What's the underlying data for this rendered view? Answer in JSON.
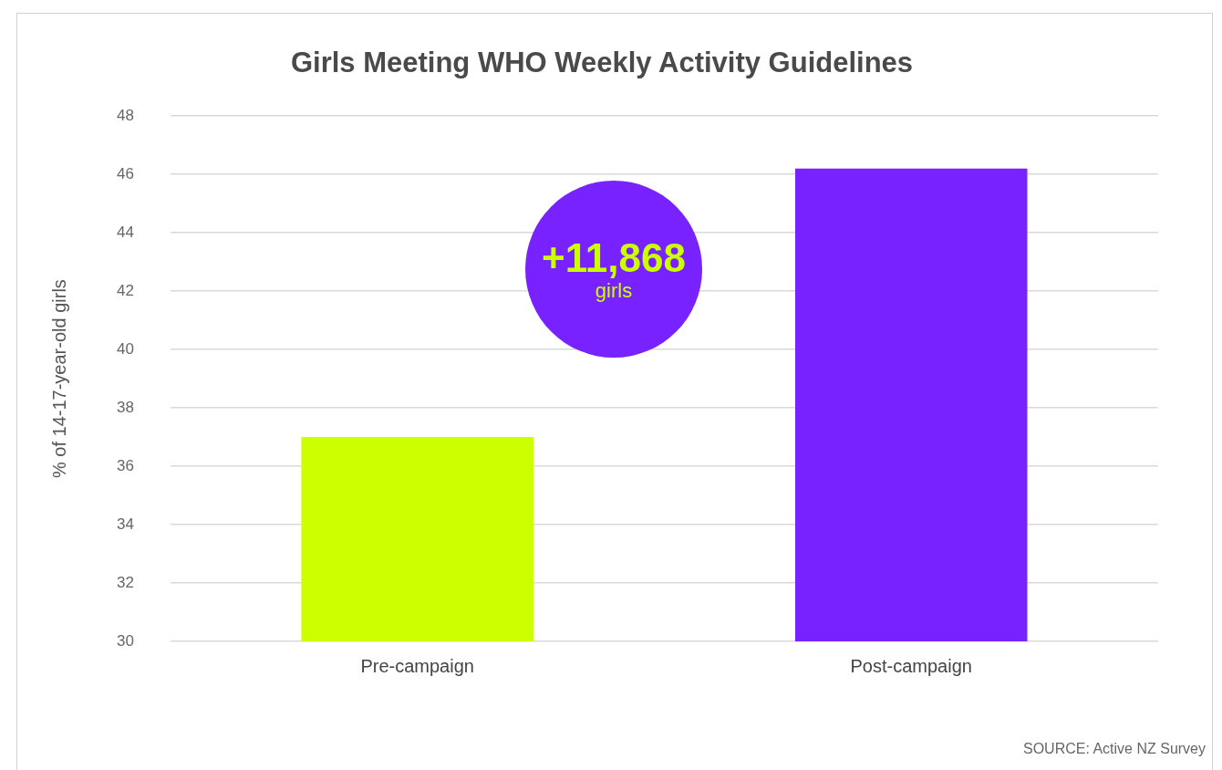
{
  "chart_data": {
    "type": "bar",
    "title": "Girls Meeting WHO Weekly Activity Guidelines",
    "ylabel": "% of 14-17-year-old girls",
    "categories": [
      "Pre-campaign",
      "Post-campaign"
    ],
    "values": [
      37,
      46.2
    ],
    "colors": [
      "#ccff00",
      "#7722ff"
    ],
    "ylim": [
      30,
      48
    ],
    "yticks": [
      30,
      32,
      34,
      36,
      38,
      40,
      42,
      44,
      46,
      48
    ],
    "grid": "y",
    "legend": false,
    "annotations": [
      "+11,868",
      "girls",
      "SOURCE: Active NZ Survey"
    ]
  }
}
